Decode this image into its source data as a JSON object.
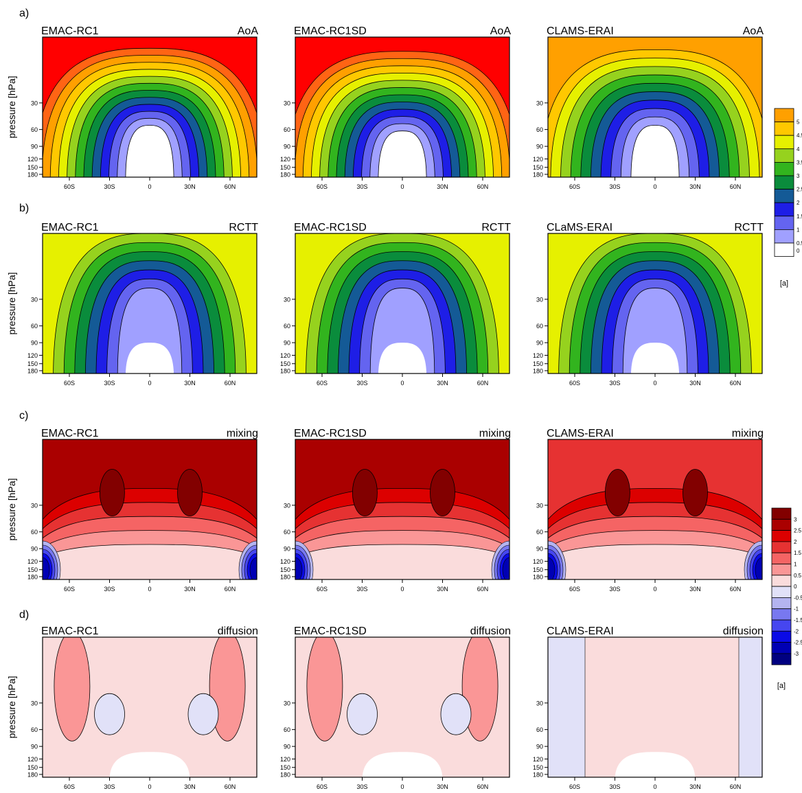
{
  "figure": {
    "row_labels": [
      "a)",
      "b)",
      "c)",
      "d)"
    ],
    "ylabel": "pressure [hPa]",
    "unit_label": "[a]"
  },
  "colors": {
    "age_scale": [
      "#ffffff",
      "#a0a0ff",
      "#6464f0",
      "#1e1ee6",
      "#145a96",
      "#0a8c3c",
      "#32b41e",
      "#96d21e",
      "#e6f000",
      "#ffc800",
      "#ffa000",
      "#ff6414",
      "#ff0000"
    ],
    "diverging_scale": [
      "#000080",
      "#0000b4",
      "#0a0ae6",
      "#4646f0",
      "#7878f0",
      "#b4b4f0",
      "#e1e1f8",
      "#fadcdc",
      "#fa9696",
      "#f56464",
      "#e63232",
      "#dc0000",
      "#aa0000",
      "#820000"
    ]
  },
  "legends": [
    {
      "ticks": [
        "5",
        "4.5",
        "4",
        "3.5",
        "3",
        "2.5",
        "2",
        "1.5",
        "1",
        "0.5",
        "0"
      ],
      "unit": "[a]"
    },
    {
      "ticks": [
        "3",
        "2.5",
        "2",
        "1.5",
        "1",
        "0.5",
        "0",
        "-0.5",
        "-1",
        "-1.5",
        "-2",
        "-2.5",
        "-3"
      ],
      "unit": "[a]"
    }
  ],
  "chart_data": [
    {
      "type": "heatmap",
      "row": "a)",
      "left_title": "EMAC-RC1",
      "right_title": "AoA",
      "quantity": "age",
      "x_ticks": [
        "60S",
        "30S",
        "0",
        "30N",
        "60N"
      ],
      "y_ticks": [
        "30",
        "60",
        "90",
        "120",
        "150",
        "180"
      ],
      "ylabel": "pressure [hPa]",
      "levels": [
        0,
        0.5,
        1,
        1.5,
        2,
        2.5,
        3,
        3.5,
        4,
        4.5,
        5
      ]
    },
    {
      "type": "heatmap",
      "row": "a)",
      "left_title": "EMAC-RC1SD",
      "right_title": "AoA",
      "quantity": "age",
      "x_ticks": [
        "60S",
        "30S",
        "0",
        "30N",
        "60N"
      ],
      "y_ticks": [
        "30",
        "60",
        "90",
        "120",
        "150",
        "180"
      ],
      "levels": [
        0,
        0.5,
        1,
        1.5,
        2,
        2.5,
        3,
        3.5,
        4,
        4.5,
        5
      ]
    },
    {
      "type": "heatmap",
      "row": "a)",
      "left_title": "CLAMS-ERAI",
      "right_title": "AoA",
      "quantity": "age",
      "x_ticks": [
        "60S",
        "30S",
        "0",
        "30N",
        "60N"
      ],
      "y_ticks": [
        "30",
        "60",
        "90",
        "120",
        "150",
        "180"
      ],
      "levels": [
        0,
        0.5,
        1,
        1.5,
        2,
        2.5,
        3,
        3.5,
        4,
        4.5,
        5
      ]
    },
    {
      "type": "heatmap",
      "row": "b)",
      "left_title": "EMAC-RC1",
      "right_title": "RCTT",
      "quantity": "age",
      "x_ticks": [
        "60S",
        "30S",
        "0",
        "30N",
        "60N"
      ],
      "y_ticks": [
        "30",
        "60",
        "90",
        "120",
        "150",
        "180"
      ],
      "ylabel": "pressure [hPa]",
      "levels": [
        0,
        0.5,
        1,
        1.5,
        2,
        2.5,
        3,
        3.5,
        4,
        4.5,
        5
      ]
    },
    {
      "type": "heatmap",
      "row": "b)",
      "left_title": "EMAC-RC1SD",
      "right_title": "RCTT",
      "quantity": "age",
      "x_ticks": [
        "60S",
        "30S",
        "0",
        "30N",
        "60N"
      ],
      "y_ticks": [
        "30",
        "60",
        "90",
        "120",
        "150",
        "180"
      ],
      "levels": [
        0,
        0.5,
        1,
        1.5,
        2,
        2.5,
        3,
        3.5,
        4,
        4.5,
        5
      ]
    },
    {
      "type": "heatmap",
      "row": "b)",
      "left_title": "CLaMS-ERAI",
      "right_title": "RCTT",
      "quantity": "age",
      "x_ticks": [
        "60S",
        "30S",
        "0",
        "30N",
        "60N"
      ],
      "y_ticks": [
        "30",
        "60",
        "90",
        "120",
        "150",
        "180"
      ],
      "levels": [
        0,
        0.5,
        1,
        1.5,
        2,
        2.5,
        3,
        3.5,
        4,
        4.5,
        5
      ]
    },
    {
      "type": "heatmap",
      "row": "c)",
      "left_title": "EMAC-RC1",
      "right_title": "mixing",
      "quantity": "diverging",
      "x_ticks": [
        "60S",
        "30S",
        "0",
        "30N",
        "60N"
      ],
      "y_ticks": [
        "30",
        "60",
        "90",
        "120",
        "150",
        "180"
      ],
      "ylabel": "pressure [hPa]",
      "levels": [
        -3,
        -2.5,
        -2,
        -1.5,
        -1,
        -0.5,
        0,
        0.5,
        1,
        1.5,
        2,
        2.5,
        3
      ]
    },
    {
      "type": "heatmap",
      "row": "c)",
      "left_title": "EMAC-RC1SD",
      "right_title": "mixing",
      "quantity": "diverging",
      "x_ticks": [
        "60S",
        "30S",
        "0",
        "30N",
        "60N"
      ],
      "y_ticks": [
        "30",
        "60",
        "90",
        "120",
        "150",
        "180"
      ],
      "levels": [
        -3,
        -2.5,
        -2,
        -1.5,
        -1,
        -0.5,
        0,
        0.5,
        1,
        1.5,
        2,
        2.5,
        3
      ]
    },
    {
      "type": "heatmap",
      "row": "c)",
      "left_title": "CLAMS-ERAI",
      "right_title": "mixing",
      "quantity": "diverging",
      "x_ticks": [
        "60S",
        "30S",
        "0",
        "30N",
        "60N"
      ],
      "y_ticks": [
        "30",
        "60",
        "90",
        "120",
        "150",
        "180"
      ],
      "levels": [
        -3,
        -2.5,
        -2,
        -1.5,
        -1,
        -0.5,
        0,
        0.5,
        1,
        1.5,
        2,
        2.5,
        3
      ]
    },
    {
      "type": "heatmap",
      "row": "d)",
      "left_title": "EMAC-RC1",
      "right_title": "diffusion",
      "quantity": "diverging",
      "x_ticks": [
        "60S",
        "30S",
        "0",
        "30N",
        "60N"
      ],
      "y_ticks": [
        "30",
        "60",
        "90",
        "120",
        "150",
        "180"
      ],
      "ylabel": "pressure [hPa]",
      "levels": [
        -3,
        -2.5,
        -2,
        -1.5,
        -1,
        -0.5,
        0,
        0.5,
        1,
        1.5,
        2,
        2.5,
        3
      ]
    },
    {
      "type": "heatmap",
      "row": "d)",
      "left_title": "EMAC-RC1SD",
      "right_title": "diffusion",
      "quantity": "diverging",
      "x_ticks": [
        "60S",
        "30S",
        "0",
        "30N",
        "60N"
      ],
      "y_ticks": [
        "30",
        "60",
        "90",
        "120",
        "150",
        "180"
      ],
      "levels": [
        -3,
        -2.5,
        -2,
        -1.5,
        -1,
        -0.5,
        0,
        0.5,
        1,
        1.5,
        2,
        2.5,
        3
      ]
    },
    {
      "type": "heatmap",
      "row": "d)",
      "left_title": "CLAMS-ERAI",
      "right_title": "diffusion",
      "quantity": "diverging",
      "x_ticks": [
        "60S",
        "30S",
        "0",
        "30N",
        "60N"
      ],
      "y_ticks": [
        "30",
        "60",
        "90",
        "120",
        "150",
        "180"
      ],
      "levels": [
        -3,
        -2.5,
        -2,
        -1.5,
        -1,
        -0.5,
        0,
        0.5,
        1,
        1.5,
        2,
        2.5,
        3
      ]
    }
  ]
}
